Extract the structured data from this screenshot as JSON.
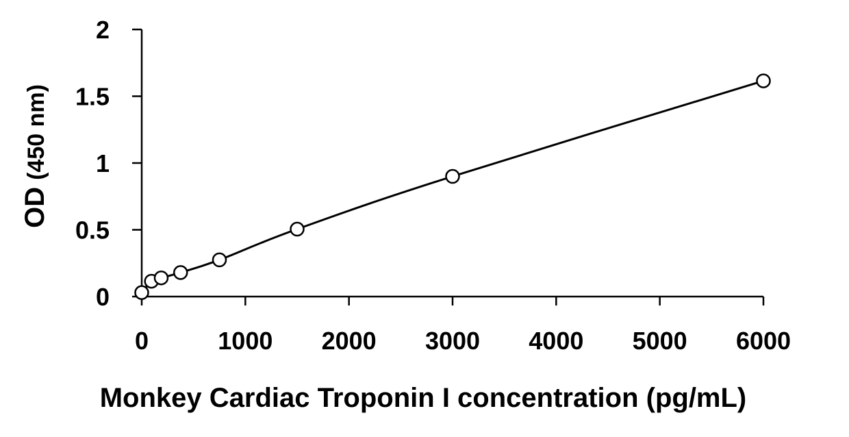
{
  "chart_data": {
    "type": "scatter",
    "title": "",
    "xlabel": "Monkey Cardiac Troponin I concentration (pg/mL)",
    "ylabel_main": "OD",
    "ylabel_unit": "(450 nm)",
    "xlim": [
      0,
      6000
    ],
    "ylim": [
      0,
      2
    ],
    "xticks": [
      0,
      1000,
      2000,
      3000,
      4000,
      5000,
      6000
    ],
    "yticks": [
      0,
      0.5,
      1,
      1.5,
      2
    ],
    "xtick_labels": [
      "0",
      "1000",
      "2000",
      "3000",
      "4000",
      "5000",
      "6000"
    ],
    "ytick_labels": [
      "0",
      "0.5",
      "1",
      "1.5",
      "2"
    ],
    "grid": false,
    "legend": "none",
    "series": [
      {
        "marker": "open-circle",
        "trendline": "smooth",
        "x": [
          0,
          94,
          188,
          375,
          750,
          1500,
          3000,
          6000
        ],
        "y": [
          0.03,
          0.115,
          0.14,
          0.18,
          0.275,
          0.505,
          0.9,
          1.615
        ]
      }
    ],
    "colors": {
      "marker": "#000000",
      "line": "#000000",
      "axis": "#000000"
    }
  }
}
